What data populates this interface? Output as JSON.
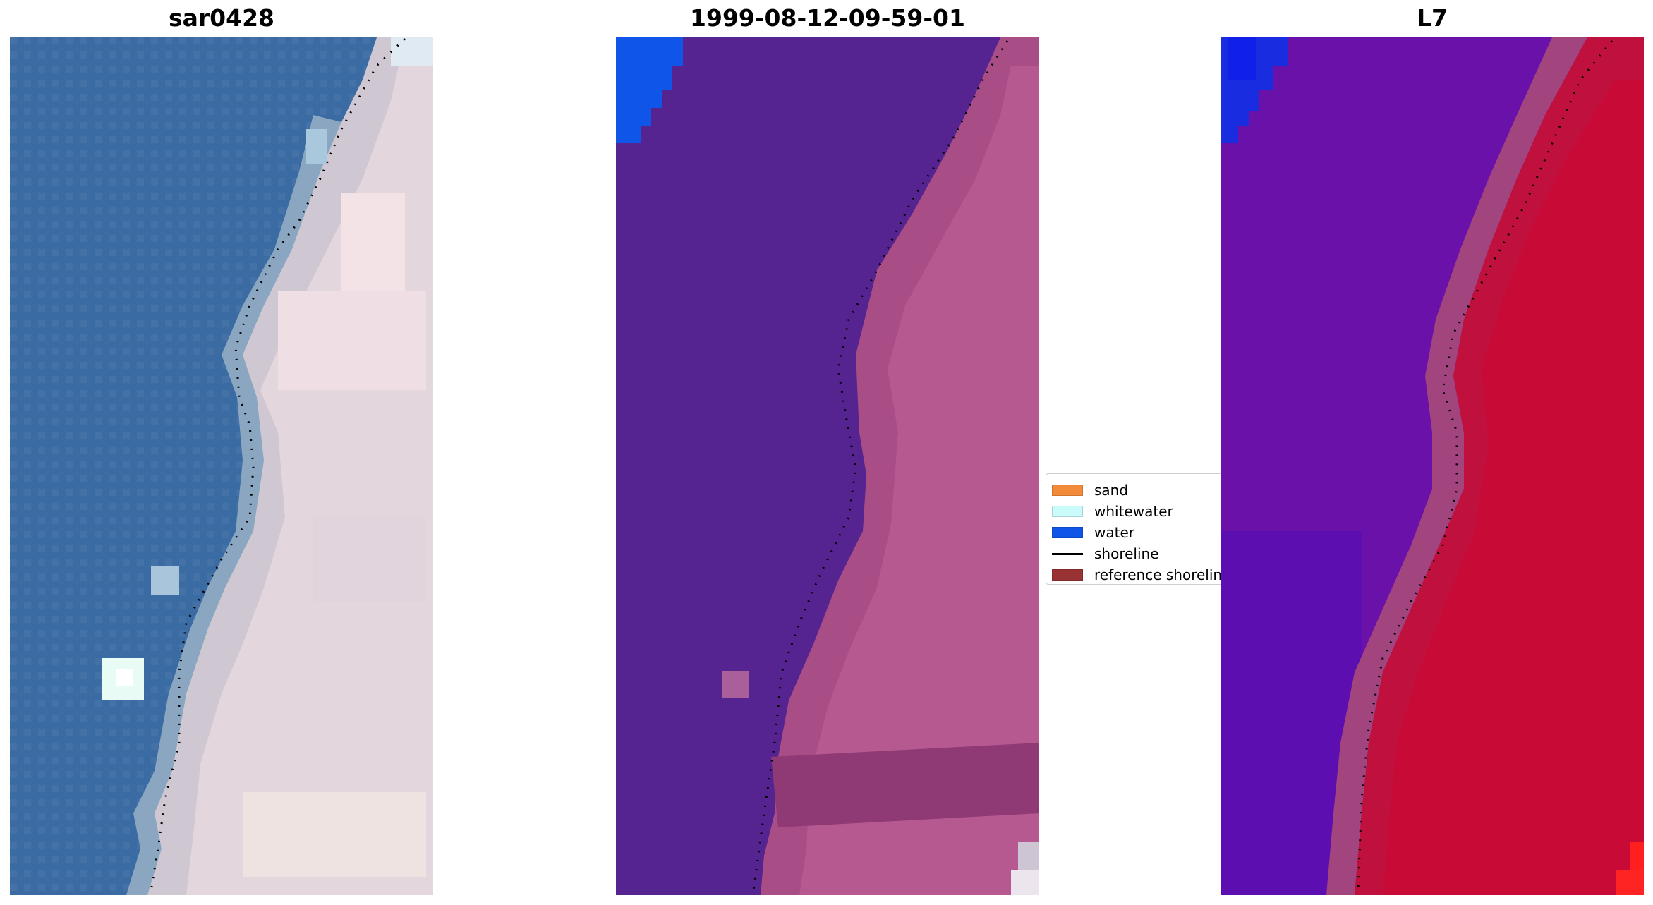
{
  "panels": {
    "panel1": {
      "title": "sar0428"
    },
    "panel2": {
      "title": "1999-08-12-09-59-01"
    },
    "panel3": {
      "title": "L7"
    }
  },
  "legend": {
    "items": [
      {
        "label": "sand",
        "color": "#f28a3a"
      },
      {
        "label": "whitewater",
        "color": "#c8fbfa"
      },
      {
        "label": "water",
        "color": "#0f56e8"
      },
      {
        "label": "shoreline",
        "color": "#000000"
      },
      {
        "label": "reference shoreline",
        "color": "#993333"
      }
    ]
  },
  "colors": {
    "ocean_rgb": "#3c6ea8",
    "land_rgb": "#d7c8d1",
    "classified_water_area": "#552491",
    "classified_land_area": "#a94d86",
    "classified_water": "#0f56e8",
    "l7_water": "#6a11a9",
    "l7_land": "#c0103e",
    "l7_bright": "#ff1f1f"
  }
}
